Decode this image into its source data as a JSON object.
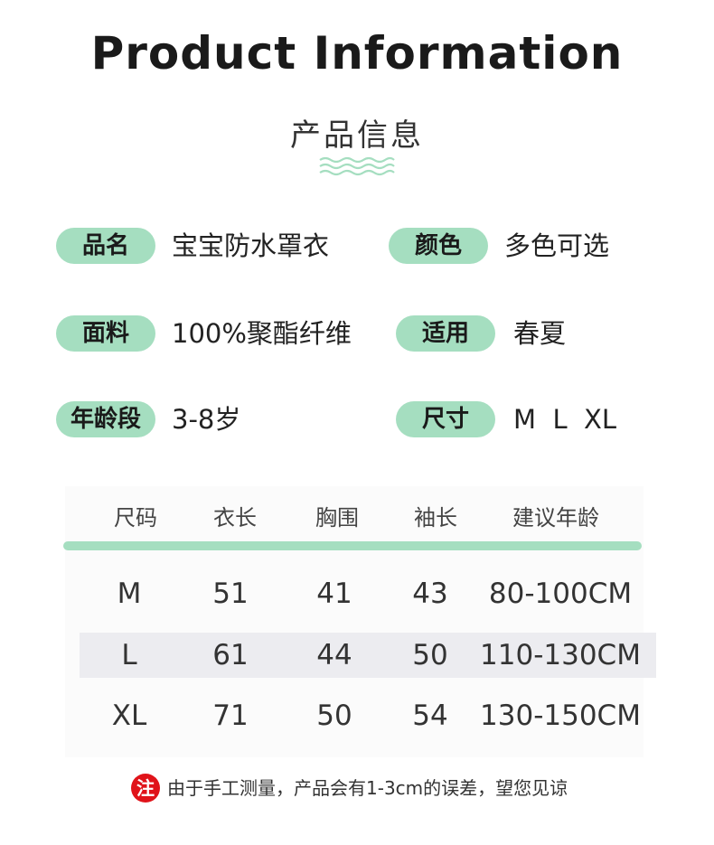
{
  "header": {
    "title": "Product Information",
    "subtitle": "产品信息"
  },
  "specs": [
    {
      "label": "品名",
      "value": "宝宝防水罩衣"
    },
    {
      "label": "颜色",
      "value": "多色可选"
    },
    {
      "label": "面料",
      "value": "100%聚酯纤维"
    },
    {
      "label": "适用",
      "value": "春夏"
    },
    {
      "label": "年龄段",
      "value": "3-8岁"
    },
    {
      "label": "尺寸",
      "value": "M  L  XL"
    }
  ],
  "size_table": {
    "headers": [
      "尺码",
      "衣长",
      "胸围",
      "袖长",
      "建议年龄"
    ],
    "rows": [
      [
        "M",
        "51",
        "41",
        "43",
        "80-100CM"
      ],
      [
        "L",
        "61",
        "44",
        "50",
        "110-130CM"
      ],
      [
        "XL",
        "71",
        "50",
        "54",
        "130-150CM"
      ]
    ]
  },
  "note": {
    "icon_text": "注",
    "text": "由于手工测量，产品会有1-3cm的误差，望您见谅"
  },
  "colors": {
    "accent": "#a5dec0",
    "note_red": "#e0131a",
    "highlight_row": "#ececf0"
  }
}
